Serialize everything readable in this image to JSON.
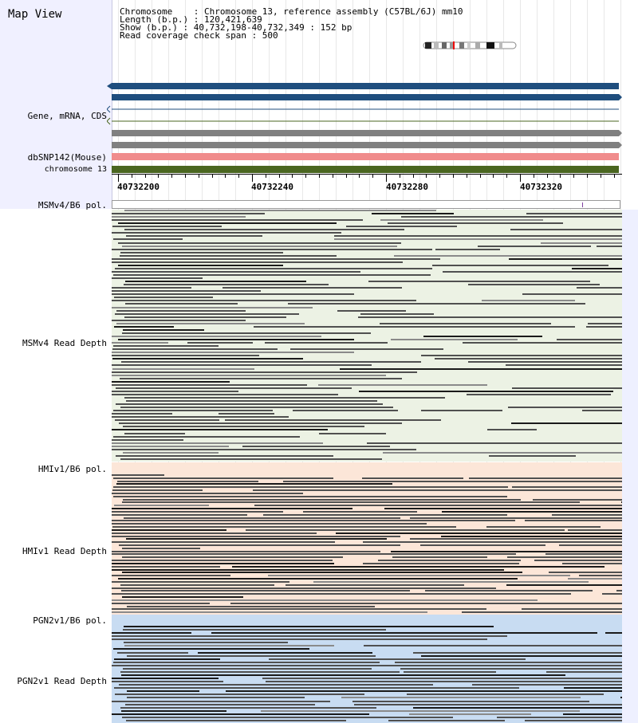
{
  "app_title": "Map View",
  "info": {
    "line1": "Chromosome    : Chromosome 13, reference assembly (C57BL/6J) mm10",
    "line2": "Length (b.p.) : 120,421,639",
    "line3": "Show (b.p.) : 40,732,198-40,732,349 : 152 bp",
    "line4": "Read coverage check span : 500"
  },
  "track_labels": {
    "gene": "Gene, mRNA, CDS",
    "dbsnp": "dbSNP142(Mouse)",
    "chromosome": "chromosome 13",
    "msm_pol": "MSMv4/B6 pol.",
    "msm_depth": "MSMv4 Read Depth",
    "hmi_pol": "HMIv1/B6 pol.",
    "hmi_depth": "HMIv1 Read Depth",
    "pgn_pol": "PGN2v1/B6 pol.",
    "pgn_depth": "PGN2v1 Read Depth"
  },
  "ruler": [
    "40732200",
    "40732240",
    "40732280",
    "40732320"
  ],
  "colors": {
    "gene_bar": "#1f4e7e",
    "grey_bar": "#808080",
    "dbsnp": "#f08c8c",
    "chromosome": "#4a6620",
    "msm_bg": "#ecf2e4",
    "hmi_bg": "#fce6d8",
    "pgn_bg": "#c8dcf2"
  }
}
